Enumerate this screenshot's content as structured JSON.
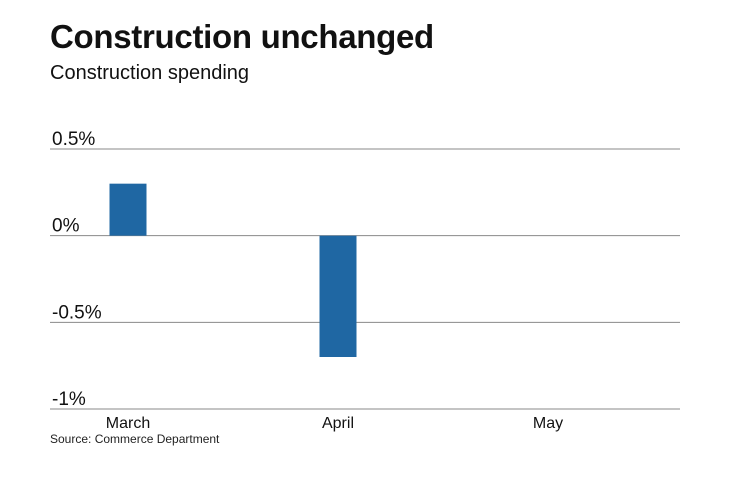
{
  "title": "Construction unchanged",
  "subtitle": "Construction spending",
  "source": "Source: Commerce Department",
  "colors": {
    "bar": "#1f67a3",
    "grid": "#8a8a8a"
  },
  "chart_data": {
    "type": "bar",
    "title": "Construction unchanged",
    "subtitle": "Construction spending",
    "xlabel": "",
    "ylabel": "",
    "categories": [
      "March",
      "April",
      "May"
    ],
    "values": [
      0.3,
      -0.7,
      0.0
    ],
    "ylim": [
      -1,
      0.5
    ],
    "yticks": [
      0.5,
      0,
      -0.5,
      -1
    ],
    "ytick_labels": [
      "0.5%",
      "0%",
      "-0.5%",
      "-1%"
    ],
    "grid": true,
    "legend": "none"
  }
}
